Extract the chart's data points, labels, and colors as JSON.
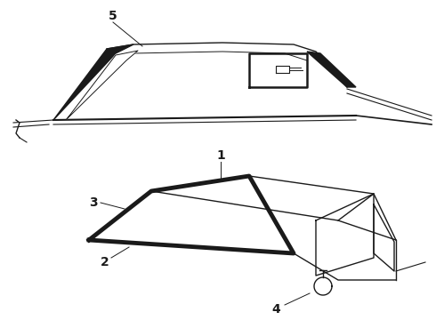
{
  "background_color": "#ffffff",
  "line_color": "#1a1a1a",
  "label_color": "#000000",
  "fig_width": 4.9,
  "fig_height": 3.6,
  "dpi": 100,
  "label_fontsize": 10
}
